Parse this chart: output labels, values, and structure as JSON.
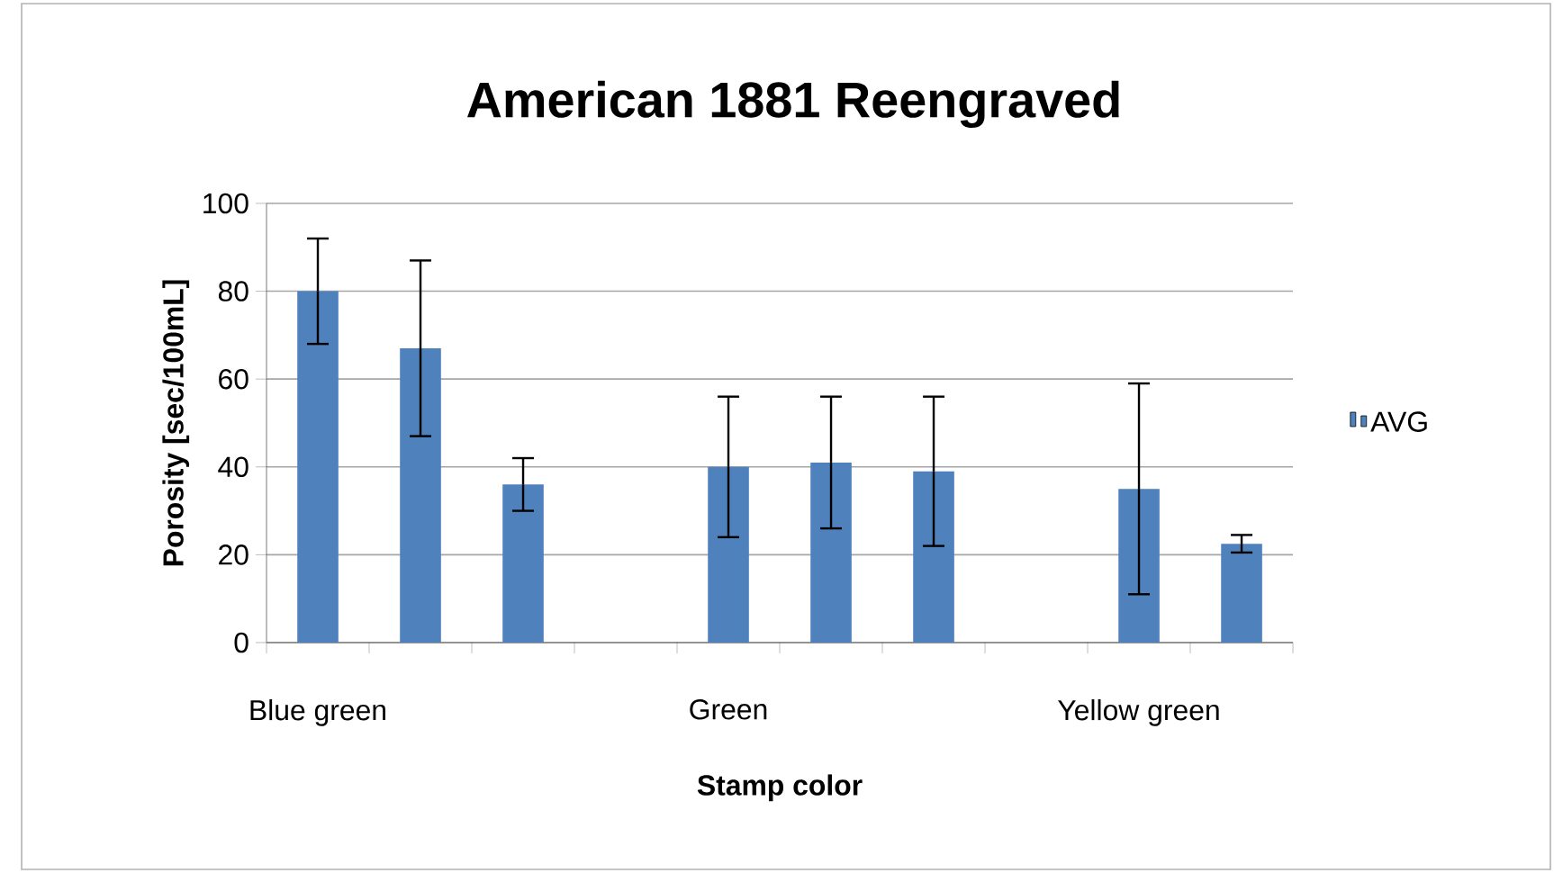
{
  "chart_data": {
    "type": "bar",
    "title": "American 1881 Reengraved",
    "xlabel": "Stamp color",
    "ylabel": "Porosity [sec/100mL]",
    "categories": [
      "Blue green",
      null,
      null,
      null,
      "Green",
      null,
      null,
      null,
      "Yellow green",
      null
    ],
    "series": [
      {
        "name": "AVG",
        "color": "#4f81bd",
        "values": [
          80,
          67,
          36,
          null,
          40,
          41,
          39,
          null,
          35,
          22.5
        ],
        "errors": [
          12,
          20,
          6,
          null,
          16,
          15,
          17,
          null,
          24,
          2
        ]
      }
    ],
    "ylim": [
      0,
      100
    ],
    "yticks": [
      0,
      20,
      40,
      60,
      80,
      100
    ],
    "grid": "y",
    "legend": "right"
  }
}
